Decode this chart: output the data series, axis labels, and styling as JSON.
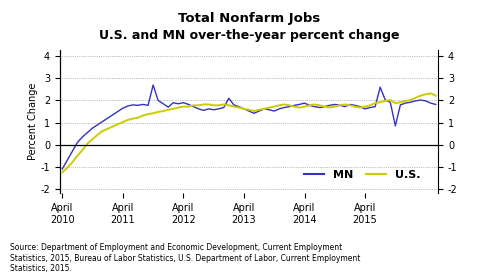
{
  "title_line1": "Total Nonfarm Jobs",
  "title_line2": "U.S. and MN over-the-year percent change",
  "ylabel": "Percent Change",
  "ylim": [
    -2.2,
    4.3
  ],
  "yticks": [
    -2,
    -1,
    0,
    1,
    2,
    3,
    4
  ],
  "source_text": "Source: Department of Employment and Economic Development, Current Employment\nStatistics, 2015, Bureau of Labor Statistics, U.S. Department of Labor, Current Employment\nStatistics, 2015.",
  "mn_color": "#3333bb",
  "us_color": "#cccc00",
  "mn_label": "MN",
  "us_label": "U.S.",
  "mn_data": [
    -1.1,
    -0.7,
    -0.3,
    0.1,
    0.35,
    0.55,
    0.75,
    0.9,
    1.05,
    1.2,
    1.35,
    1.5,
    1.65,
    1.75,
    1.8,
    1.78,
    1.82,
    1.78,
    2.7,
    2.0,
    1.85,
    1.7,
    1.9,
    1.85,
    1.9,
    1.82,
    1.72,
    1.62,
    1.55,
    1.62,
    1.58,
    1.62,
    1.68,
    2.1,
    1.8,
    1.72,
    1.62,
    1.52,
    1.42,
    1.52,
    1.62,
    1.58,
    1.52,
    1.62,
    1.68,
    1.72,
    1.78,
    1.82,
    1.88,
    1.78,
    1.72,
    1.68,
    1.72,
    1.78,
    1.82,
    1.78,
    1.72,
    1.82,
    1.78,
    1.72,
    1.62,
    1.68,
    1.72,
    2.6,
    2.02,
    1.92,
    0.85,
    1.8,
    1.88,
    1.92,
    1.98,
    2.02,
    1.98,
    1.88,
    1.82
  ],
  "us_data": [
    -1.25,
    -1.05,
    -0.8,
    -0.5,
    -0.25,
    0.05,
    0.25,
    0.45,
    0.62,
    0.72,
    0.82,
    0.92,
    1.02,
    1.12,
    1.18,
    1.22,
    1.32,
    1.38,
    1.42,
    1.48,
    1.52,
    1.58,
    1.62,
    1.68,
    1.72,
    1.72,
    1.78,
    1.78,
    1.82,
    1.82,
    1.78,
    1.78,
    1.82,
    1.78,
    1.72,
    1.68,
    1.62,
    1.58,
    1.52,
    1.58,
    1.62,
    1.68,
    1.72,
    1.78,
    1.82,
    1.78,
    1.72,
    1.68,
    1.72,
    1.78,
    1.82,
    1.78,
    1.72,
    1.68,
    1.72,
    1.78,
    1.82,
    1.78,
    1.72,
    1.68,
    1.72,
    1.78,
    1.88,
    1.92,
    1.98,
    2.02,
    1.88,
    1.92,
    1.98,
    2.02,
    2.12,
    2.22,
    2.28,
    2.32,
    2.22
  ],
  "n_months": 75,
  "xtick_positions": [
    0,
    12,
    24,
    36,
    48,
    60,
    72
  ],
  "xtick_labels": [
    "April\n2010",
    "April\n2011",
    "April\n2012",
    "April\n2013",
    "April\n2014",
    "April\n2015",
    ""
  ]
}
